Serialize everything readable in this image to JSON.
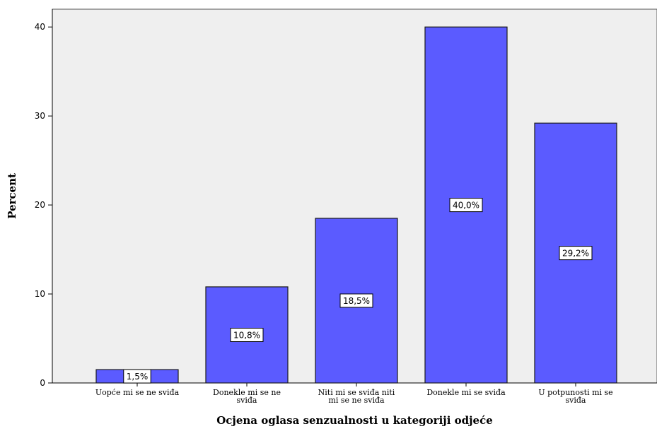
{
  "chart_data": {
    "type": "bar",
    "title": "",
    "xlabel": "Ocjena oglasa senzualnosti u kategoriji odjeće",
    "ylabel": "Percent",
    "ylim": [
      0,
      42
    ],
    "yticks": [
      0,
      10,
      20,
      30,
      40
    ],
    "grid": false,
    "legend": "none",
    "categories": [
      [
        "Uopće mi se ne sviđa"
      ],
      [
        "Donekle mi se ne",
        "sviđa"
      ],
      [
        "Niti mi se sviđa niti",
        "mi se ne sviđa"
      ],
      [
        "Donekle mi se sviđa"
      ],
      [
        "U potpunosti mi se",
        "sviđa"
      ]
    ],
    "values": [
      1.5,
      10.8,
      18.5,
      40.0,
      29.2
    ],
    "data_labels": [
      "1,5%",
      "10,8%",
      "18,5%",
      "40,0%",
      "29,2%"
    ],
    "colors": {
      "bar_fill": "#5b5bff",
      "bar_stroke": "#1a1a1a",
      "plot_background": "#efefef",
      "label_background": "#ffffff"
    }
  }
}
